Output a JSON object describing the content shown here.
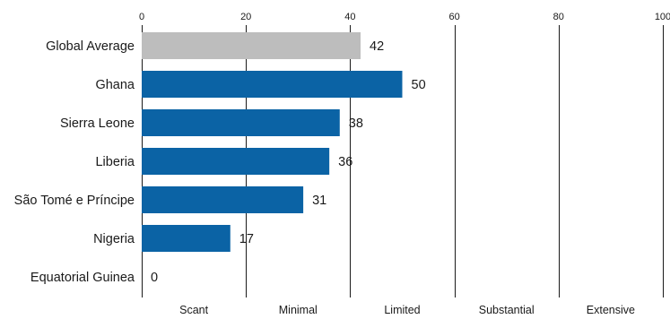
{
  "chart_data": {
    "type": "bar",
    "orientation": "horizontal",
    "categories": [
      "Global Average",
      "Ghana",
      "Sierra Leone",
      "Liberia",
      "São Tomé e Príncipe",
      "Nigeria",
      "Equatorial Guinea"
    ],
    "values": [
      42,
      50,
      38,
      36,
      31,
      17,
      0
    ],
    "xlim": [
      0,
      100
    ],
    "x_ticks": [
      "0",
      "20",
      "40",
      "60",
      "80",
      "100"
    ],
    "x_tick_values": [
      0,
      20,
      40,
      60,
      80,
      100
    ],
    "x_axis_position": "top",
    "bands": [
      "Scant",
      "Minimal",
      "Limited",
      "Substantial",
      "Extensive"
    ],
    "grid": true,
    "colors": {
      "highlight_bar": "#bdbdbd",
      "bar": "#0b63a5",
      "gridline": "#1a1a1a",
      "text": "#1a1a1a"
    },
    "highlight_index": 0
  }
}
